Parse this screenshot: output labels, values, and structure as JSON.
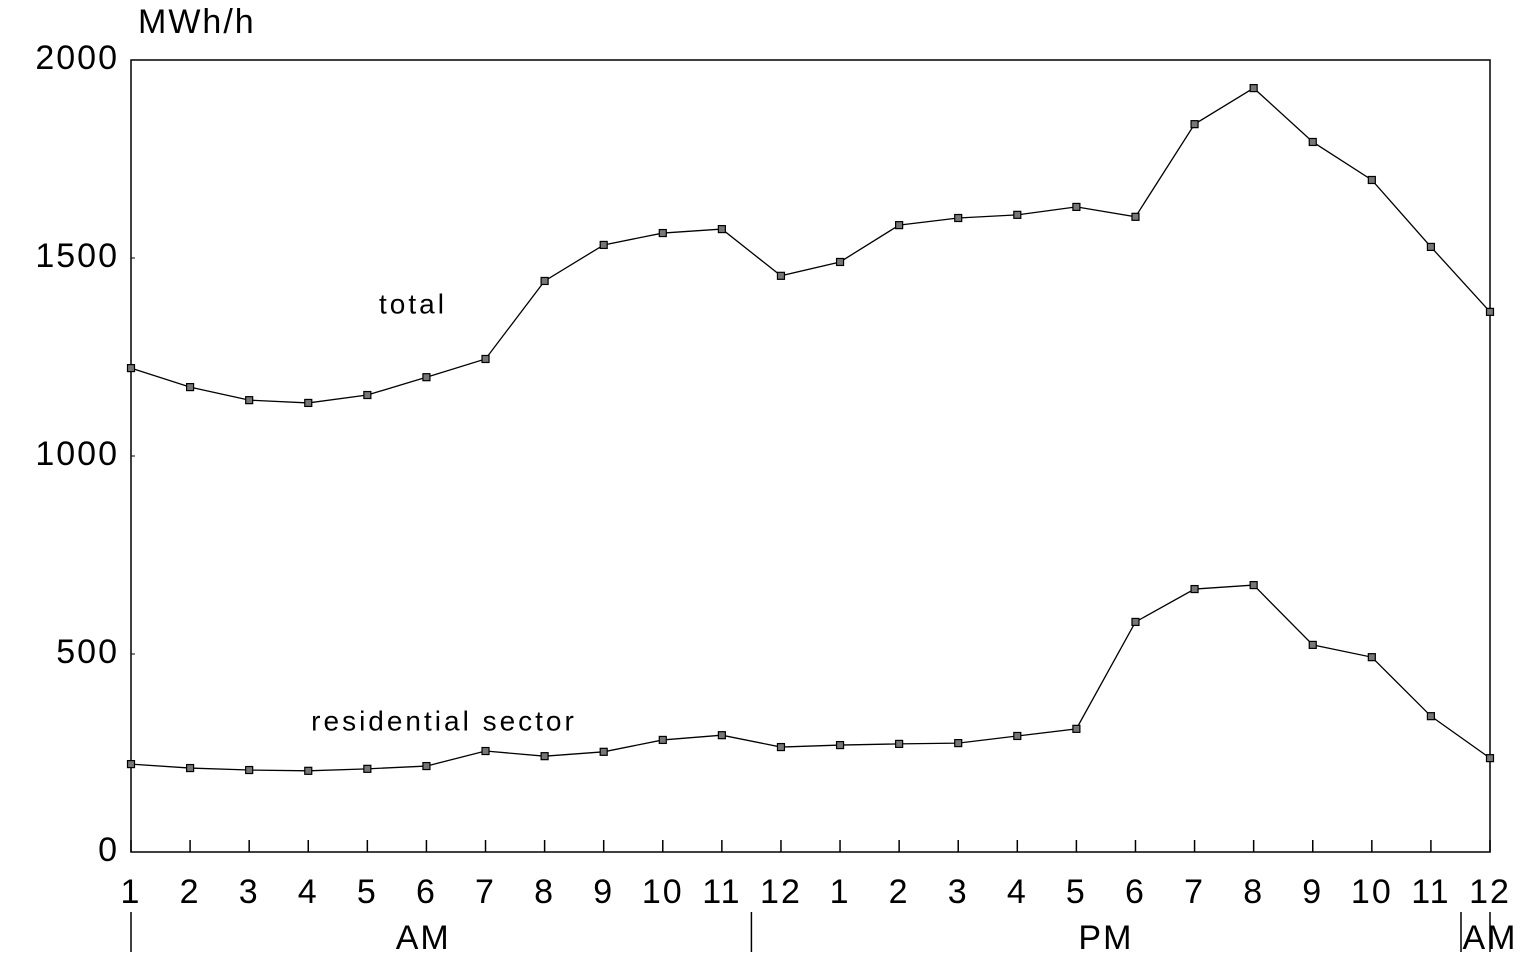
{
  "chart_data": {
    "type": "line",
    "y_label": "MWh/h",
    "categories": [
      "1",
      "2",
      "3",
      "4",
      "5",
      "6",
      "7",
      "8",
      "9",
      "10",
      "11",
      "12",
      "1",
      "2",
      "3",
      "4",
      "5",
      "6",
      "7",
      "8",
      "9",
      "10",
      "11",
      "12"
    ],
    "periods": [
      "AM",
      "PM",
      "AM"
    ],
    "series": [
      {
        "name": "total",
        "color": "#000000",
        "values": [
          1222,
          1174,
          1141,
          1134,
          1154,
          1199,
          1245,
          1442,
          1533,
          1563,
          1573,
          1455,
          1490,
          1583,
          1601,
          1609,
          1629,
          1604,
          1838,
          1929,
          1793,
          1697,
          1528,
          1364
        ]
      },
      {
        "name": "residential sector",
        "color": "#000000",
        "values": [
          222,
          212,
          207,
          205,
          210,
          217,
          255,
          242,
          253,
          283,
          295,
          265,
          270,
          273,
          275,
          293,
          311,
          581,
          664,
          674,
          523,
          492,
          343,
          237
        ]
      }
    ],
    "ylim": [
      0,
      2000
    ],
    "yticks": [
      0,
      500,
      1000,
      1500,
      2000
    ],
    "grid": false
  }
}
